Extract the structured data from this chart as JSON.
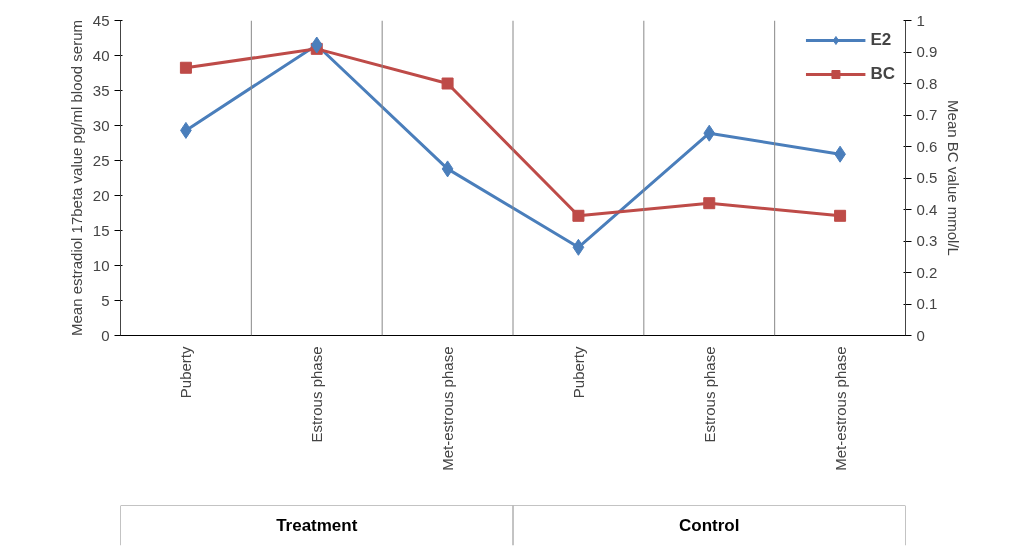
{
  "chart_data": {
    "type": "line",
    "categories": [
      "Puberty",
      "Estrous phase",
      "Met-estrous phase",
      "Puberty",
      "Estrous phase",
      "Met-estrous phase"
    ],
    "ylabel": "Mean estradiol 17beta value pg/ml blood serum",
    "y2label": "Mean BC value mmol/L",
    "ylim": [
      0,
      45
    ],
    "yticks": [
      0,
      5,
      10,
      15,
      20,
      25,
      30,
      35,
      40,
      45
    ],
    "y2lim": [
      0,
      1
    ],
    "y2ticks": [
      0,
      0.1,
      0.2,
      0.3,
      0.4,
      0.5,
      0.6,
      0.7,
      0.8,
      0.9,
      1
    ],
    "series": [
      {
        "name": "E2",
        "color": "#4a7ebb",
        "marker": "diamond",
        "values": [
          29.3,
          41.5,
          23.8,
          12.6,
          28.9,
          25.9
        ]
      },
      {
        "name": "BC",
        "color": "#be4b48",
        "marker": "square",
        "axis": "y2",
        "values": [
          0.85,
          0.91,
          0.8,
          0.38,
          0.42,
          0.38
        ]
      }
    ],
    "annotations": [
      "Treatment",
      "Control"
    ],
    "legend": "top right",
    "grid": false
  }
}
